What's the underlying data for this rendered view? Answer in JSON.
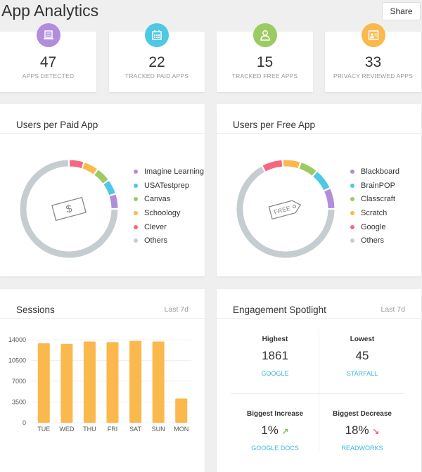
{
  "header": {
    "title": "App Analytics",
    "share_label": "Share"
  },
  "stats": [
    {
      "value": "47",
      "label": "APPS DETECTED",
      "icon": "laptop-icon",
      "color": "#b28ddb"
    },
    {
      "value": "22",
      "label": "TRACKED PAID APPS",
      "icon": "calendar-icon",
      "color": "#4ec8e3"
    },
    {
      "value": "15",
      "label": "TRACKED FREE APPS",
      "icon": "user-icon",
      "color": "#9ccb62"
    },
    {
      "value": "33",
      "label": "PRIVACY REVIEWED APPS",
      "icon": "id-card-icon",
      "color": "#fbb84c"
    }
  ],
  "paid": {
    "title": "Users per Paid App"
  },
  "free": {
    "title": "Users per Free App",
    "icon_text": "FREE"
  },
  "sessions": {
    "title": "Sessions",
    "range": "Last 7d"
  },
  "spotlight": {
    "title": "Engagement Spotlight",
    "range": "Last 7d",
    "highest": {
      "label": "Highest",
      "value": "1861",
      "app": "GOOGLE"
    },
    "lowest": {
      "label": "Lowest",
      "value": "45",
      "app": "STARFALL"
    },
    "increase": {
      "label": "Biggest Increase",
      "value": "1%",
      "app": "GOOGLE DOCS"
    },
    "decrease": {
      "label": "Biggest Decrease",
      "value": "18%",
      "app": "READWORKS"
    }
  },
  "chart_data": [
    {
      "type": "pie",
      "title": "Users per Paid App",
      "categories": [
        "Imagine Learning",
        "USATestprep",
        "Canvas",
        "Schoology",
        "Clever",
        "Others"
      ],
      "values": [
        5,
        5,
        5,
        5,
        5,
        75
      ],
      "colors": [
        "#b28ddb",
        "#4ec8e3",
        "#9ccb62",
        "#fbb84c",
        "#f6677f",
        "#c6cdd0"
      ],
      "legend": "right"
    },
    {
      "type": "pie",
      "title": "Users per Free App",
      "categories": [
        "Blackboard",
        "BrainPOP",
        "Classcraft",
        "Scratch",
        "Google",
        "Others"
      ],
      "values": [
        7,
        7,
        6,
        6,
        7,
        67
      ],
      "colors": [
        "#b28ddb",
        "#4ec8e3",
        "#9ccb62",
        "#fbb84c",
        "#f6677f",
        "#c6cdd0"
      ],
      "legend": "right"
    },
    {
      "type": "bar",
      "title": "Sessions",
      "categories": [
        "TUE",
        "WED",
        "THU",
        "FRI",
        "SAT",
        "SUN",
        "MON"
      ],
      "values": [
        13400,
        13300,
        13700,
        13600,
        13800,
        13700,
        4100
      ],
      "yticks": [
        "0",
        "3500",
        "7000",
        "10500",
        "14000"
      ],
      "ylim": [
        0,
        14000
      ],
      "color": "#fbb84c",
      "grid": true
    }
  ]
}
